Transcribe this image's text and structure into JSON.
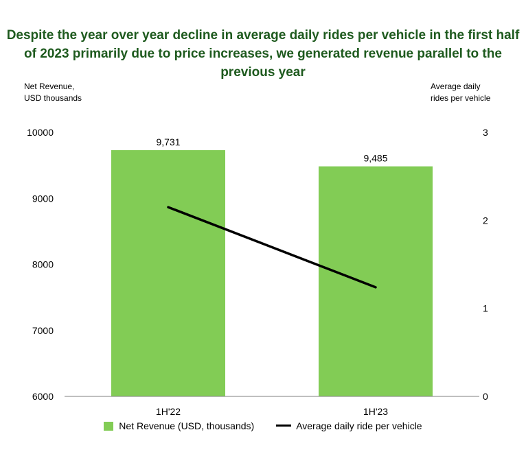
{
  "chart_data": {
    "type": "bar",
    "title": "Despite the year over year decline in average daily rides per vehicle in the first half of 2023 primarily due to price increases, we generated revenue parallel to the previous year",
    "categories": [
      "1H'22",
      "1H'23"
    ],
    "series": [
      {
        "name": "Net Revenue (USD, thousands)",
        "type": "bar",
        "axis": "left",
        "values": [
          9731,
          9485
        ],
        "data_labels": [
          "9,731",
          "9,485"
        ]
      },
      {
        "name": "Average daily ride per vehicle",
        "type": "line",
        "axis": "right",
        "values": [
          2.15,
          1.24
        ]
      }
    ],
    "ylabel_left": "Net Revenue, USD thousands",
    "ylabel_right": "Average daily rides per vehicle",
    "ylim_left": [
      6000,
      10000
    ],
    "yticks_left": [
      "10000",
      "9000",
      "8000",
      "7000",
      "6000"
    ],
    "ylim_right": [
      0,
      3
    ],
    "yticks_right": [
      "3",
      "2",
      "1",
      "0"
    ],
    "grid": false,
    "legend": "bottom",
    "colors": {
      "bar": "#82cc55",
      "line": "#000000",
      "title": "#1e5a1e"
    }
  }
}
